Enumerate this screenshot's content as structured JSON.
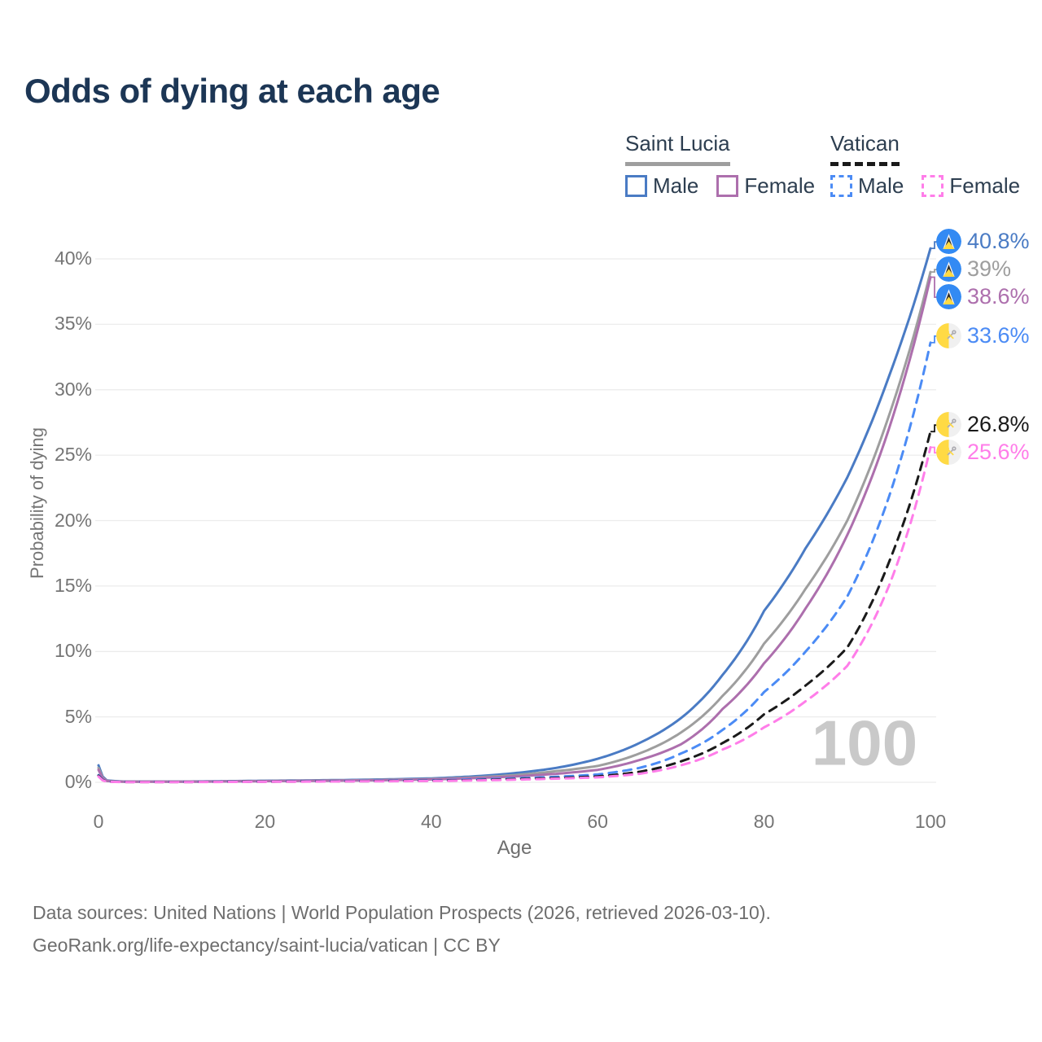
{
  "title": "Odds of dying at each age",
  "legend": {
    "groups": [
      {
        "name": "Saint Lucia",
        "line_style": "solid",
        "line_color": "#9e9e9e",
        "items": [
          {
            "label": "Male",
            "color": "#4a7bc4",
            "style": "solid"
          },
          {
            "label": "Female",
            "color": "#ad6fad",
            "style": "solid"
          }
        ]
      },
      {
        "name": "Vatican",
        "line_style": "dashed",
        "line_color": "#1a1a1a",
        "items": [
          {
            "label": "Male",
            "color": "#4b8bf5",
            "style": "dashed"
          },
          {
            "label": "Female",
            "color": "#ff7de9",
            "style": "dashed"
          }
        ]
      }
    ]
  },
  "chart_data": {
    "type": "line",
    "title": "Odds of dying at each age",
    "xlabel": "Age",
    "ylabel": "Probability of dying",
    "xlim": [
      0,
      100
    ],
    "ylim_pct": [
      0,
      42
    ],
    "x_ticks": [
      0,
      20,
      40,
      60,
      80,
      100
    ],
    "y_ticks_pct": [
      0,
      5,
      10,
      15,
      20,
      25,
      30,
      35,
      40
    ],
    "grid": "horizontal",
    "gridline_color": "#ececec",
    "age_watermark": "100",
    "series": [
      {
        "id": "saint-lucia-male",
        "country": "Saint Lucia",
        "sex": "Male",
        "style": "solid",
        "color": "#4a7bc4",
        "icon": "saint-lucia-flag-icon",
        "end_value_pct": 40.8,
        "end_label": "40.8%",
        "label_color": "#4a7bc4",
        "points": {
          "ages": [
            0,
            1,
            3,
            10,
            20,
            30,
            40,
            45,
            50,
            55,
            60,
            65,
            70,
            75,
            80,
            85,
            90,
            95,
            100
          ],
          "values_pct": [
            1.3,
            0.15,
            0.06,
            0.06,
            0.12,
            0.18,
            0.3,
            0.45,
            0.7,
            1.1,
            1.8,
            3.0,
            4.9,
            8.2,
            13.1,
            17.9,
            23.3,
            31.0,
            40.8
          ]
        }
      },
      {
        "id": "saint-lucia-all",
        "country": "Saint Lucia",
        "sex": "All",
        "style": "solid",
        "color": "#9e9e9e",
        "icon": "saint-lucia-flag-icon",
        "end_value_pct": 39,
        "end_label": "39%",
        "label_color": "#9e9e9e",
        "points": {
          "ages": [
            0,
            1,
            3,
            10,
            20,
            30,
            40,
            45,
            50,
            55,
            60,
            65,
            70,
            75,
            80,
            85,
            90,
            95,
            100
          ],
          "values_pct": [
            1.1,
            0.12,
            0.05,
            0.05,
            0.1,
            0.15,
            0.25,
            0.37,
            0.55,
            0.85,
            1.25,
            2.2,
            3.8,
            6.6,
            10.6,
            14.8,
            20.0,
            28.0,
            39.0
          ]
        }
      },
      {
        "id": "saint-lucia-female",
        "country": "Saint Lucia",
        "sex": "Female",
        "style": "solid",
        "color": "#ad6fad",
        "icon": "saint-lucia-flag-icon",
        "end_value_pct": 38.6,
        "end_label": "38.6%",
        "label_color": "#ad6fad",
        "points": {
          "ages": [
            0,
            1,
            3,
            10,
            20,
            30,
            40,
            45,
            50,
            55,
            60,
            65,
            70,
            75,
            80,
            85,
            90,
            95,
            100
          ],
          "values_pct": [
            0.95,
            0.1,
            0.045,
            0.045,
            0.09,
            0.13,
            0.22,
            0.32,
            0.45,
            0.65,
            0.95,
            1.7,
            2.9,
            5.6,
            9.1,
            13.3,
            18.9,
            27.0,
            38.6
          ]
        }
      },
      {
        "id": "vatican-male",
        "country": "Vatican",
        "sex": "Male",
        "style": "dashed",
        "color": "#4b8bf5",
        "icon": "vatican-flag-icon",
        "end_value_pct": 33.6,
        "end_label": "33.6%",
        "label_color": "#4b8bf5",
        "points": {
          "ages": [
            0,
            1,
            3,
            10,
            20,
            30,
            40,
            45,
            50,
            55,
            60,
            65,
            70,
            75,
            80,
            85,
            90,
            95,
            100
          ],
          "values_pct": [
            0.55,
            0.07,
            0.03,
            0.03,
            0.06,
            0.1,
            0.15,
            0.22,
            0.3,
            0.42,
            0.6,
            1.1,
            2.2,
            4.0,
            6.9,
            10.0,
            14.2,
            21.8,
            33.6
          ]
        }
      },
      {
        "id": "vatican-all",
        "country": "Vatican",
        "sex": "All",
        "style": "dashed",
        "color": "#1a1a1a",
        "icon": "vatican-flag-icon",
        "end_value_pct": 26.8,
        "end_label": "26.8%",
        "label_color": "#1a1a1a",
        "points": {
          "ages": [
            0,
            1,
            3,
            10,
            20,
            30,
            40,
            45,
            50,
            55,
            60,
            65,
            70,
            75,
            80,
            85,
            90,
            95,
            100
          ],
          "values_pct": [
            0.5,
            0.06,
            0.025,
            0.025,
            0.05,
            0.08,
            0.12,
            0.17,
            0.24,
            0.33,
            0.45,
            0.8,
            1.6,
            3.0,
            5.2,
            7.4,
            10.3,
            16.8,
            26.8
          ]
        }
      },
      {
        "id": "vatican-female",
        "country": "Vatican",
        "sex": "Female",
        "style": "dashed",
        "color": "#ff7de9",
        "icon": "vatican-flag-icon",
        "end_value_pct": 25.6,
        "end_label": "25.6%",
        "label_color": "#ff7de9",
        "points": {
          "ages": [
            0,
            1,
            3,
            10,
            20,
            30,
            40,
            45,
            50,
            55,
            60,
            65,
            70,
            75,
            80,
            85,
            90,
            95,
            100
          ],
          "values_pct": [
            0.45,
            0.05,
            0.02,
            0.02,
            0.04,
            0.07,
            0.1,
            0.14,
            0.2,
            0.28,
            0.38,
            0.65,
            1.3,
            2.5,
            4.2,
            6.2,
            8.9,
            15.0,
            25.6
          ]
        }
      }
    ]
  },
  "footer": {
    "line1": "Data sources: United Nations | World Population Prospects (2026, retrieved 2026-03-10).",
    "line2": "GeoRank.org/life-expectancy/saint-lucia/vatican | CC BY"
  }
}
